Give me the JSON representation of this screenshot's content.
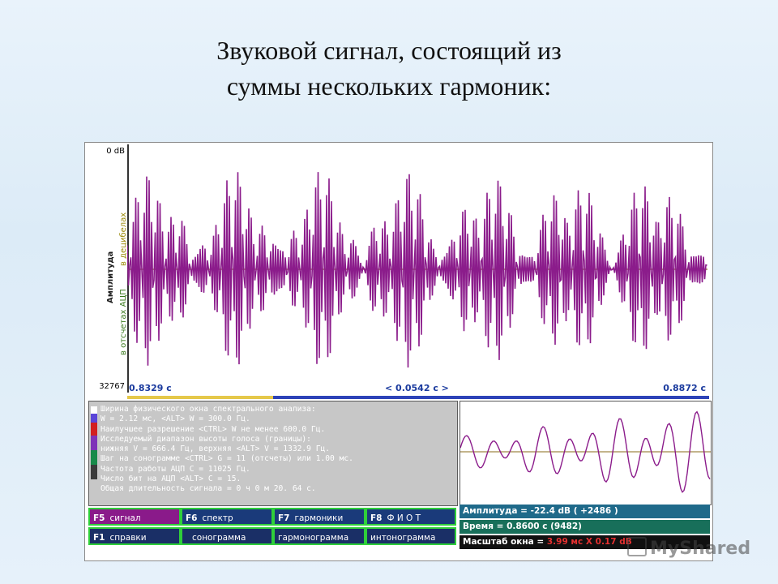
{
  "slide": {
    "title_line1": "Звуковой сигнал, состоящий из",
    "title_line2": "суммы нескольких гармоник:"
  },
  "waveform": {
    "top_label": "0 dB",
    "bottom_label": "32767",
    "axis_title": "Амплитуда",
    "axis_sub1": "в отсчетах АЦП",
    "axis_sub2": "в децибелах",
    "time_start": "0.8329 c",
    "time_window": "< 0.0542 c >",
    "time_end": "0.8872 c",
    "signal_color": "#8b1c8b",
    "baseline_color": "#8a6b1a"
  },
  "info": {
    "lines": [
      "Ширина физического окна спектрального анализа:",
      "W = 2.12 мс,          <ALT> W = 300.0 Гц.",
      "Наилучшее разрешение <CTRL> W не менее 600.0 Гц.",
      "Исследуемый диапазон высоты голоса (границы):",
      "нижняя V = 666.4 Гц, верхняя <ALT> V = 1332.9 Гц.",
      "Шаг на сонограмме <CTRL> G = 11 (отсчеты) или 1.00 мс.",
      "Частота работы АЦП C = 11025 Гц.",
      "Число бит на АЦП <ALT> C = 15.",
      "Общая длительность сигнала = 0 ч 0 м 20. 64 с."
    ]
  },
  "status": {
    "amplitude": "Амплитуда =    -22.4 dB    ( +2486 )",
    "time": "Время =          0.8600 c (9482)",
    "scale_label": "Масштаб окна =",
    "scale_value": "3.99 мс X 0.17 dB"
  },
  "fkeys": {
    "f5_key": "F5",
    "f5_label": "сигнал",
    "f6_key": "F6",
    "f6_label": "спектр",
    "f7_key": "F7",
    "f7_label": "гармоники",
    "f8_key": "F8",
    "f8_label": "Ф И О Т",
    "f1_key": "F1",
    "f1_label": "справки",
    "sono_label": "сонограмма",
    "harm_label": "гармонограмма",
    "inton_label": "интонограмма"
  },
  "watermark": {
    "text": "MyShared"
  }
}
